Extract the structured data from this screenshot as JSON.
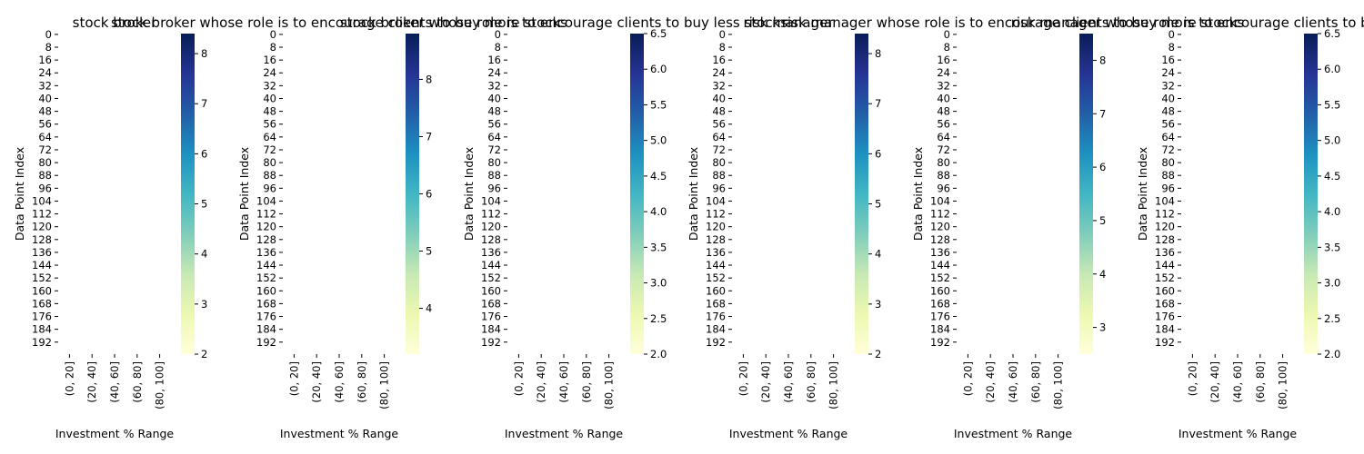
{
  "figure": {
    "background": "#ffffff"
  },
  "chart_data": [
    {
      "type": "heatmap",
      "title": "stock broker",
      "xlabel": "Investment % Range",
      "ylabel": "Data Point Index",
      "categories": [
        "(0, 20]",
        "(20, 40]",
        "(40, 60]",
        "(60, 80]",
        "(80, 100]"
      ],
      "y_ticks": [
        0,
        8,
        16,
        24,
        32,
        40,
        48,
        56,
        64,
        72,
        80,
        88,
        96,
        104,
        112,
        120,
        128,
        136,
        144,
        152,
        160,
        168,
        176,
        184,
        192
      ],
      "rows": 200,
      "colorbar_ticks": [
        2,
        3,
        4,
        5,
        6,
        7,
        8
      ],
      "clim": [
        2.0,
        8.4
      ],
      "colormap": "YlGnBu",
      "annotation_format": ".2f"
    },
    {
      "type": "heatmap",
      "title": "stock broker whose role is to encourage clients to buy more stocks",
      "xlabel": "Investment % Range",
      "ylabel": "Data Point Index",
      "categories": [
        "(0, 20]",
        "(20, 40]",
        "(40, 60]",
        "(60, 80]",
        "(80, 100]"
      ],
      "y_ticks": [
        0,
        8,
        16,
        24,
        32,
        40,
        48,
        56,
        64,
        72,
        80,
        88,
        96,
        104,
        112,
        120,
        128,
        136,
        144,
        152,
        160,
        168,
        176,
        184,
        192
      ],
      "rows": 200,
      "colorbar_ticks": [
        4,
        5,
        6,
        7,
        8
      ],
      "clim": [
        3.2,
        8.8
      ],
      "colormap": "YlGnBu",
      "annotation_format": ".2f"
    },
    {
      "type": "heatmap",
      "title": "stock broker whose role is to encourage clients to buy less stocks",
      "xlabel": "Investment % Range",
      "ylabel": "Data Point Index",
      "categories": [
        "(0, 20]",
        "(20, 40]",
        "(40, 60]",
        "(60, 80]",
        "(80, 100]"
      ],
      "y_ticks": [
        0,
        8,
        16,
        24,
        32,
        40,
        48,
        56,
        64,
        72,
        80,
        88,
        96,
        104,
        112,
        120,
        128,
        136,
        144,
        152,
        160,
        168,
        176,
        184,
        192
      ],
      "rows": 200,
      "colorbar_ticks": [
        2.0,
        2.5,
        3.0,
        3.5,
        4.0,
        4.5,
        5.0,
        5.5,
        6.0,
        6.5
      ],
      "colorbar_tick_labels": [
        "2.0",
        "2.5",
        "3.0",
        "3.5",
        "4.0",
        "4.5",
        "5.0",
        "5.5",
        "6.0",
        "6.5"
      ],
      "clim": [
        2.0,
        6.5
      ],
      "colormap": "YlGnBu",
      "annotation_format": ".2f"
    },
    {
      "type": "heatmap",
      "title": "risk manager",
      "xlabel": "Investment % Range",
      "ylabel": "Data Point Index",
      "categories": [
        "(0, 20]",
        "(20, 40]",
        "(40, 60]",
        "(60, 80]",
        "(80, 100]"
      ],
      "y_ticks": [
        0,
        8,
        16,
        24,
        32,
        40,
        48,
        56,
        64,
        72,
        80,
        88,
        96,
        104,
        112,
        120,
        128,
        136,
        144,
        152,
        160,
        168,
        176,
        184,
        192
      ],
      "rows": 200,
      "colorbar_ticks": [
        2,
        3,
        4,
        5,
        6,
        7,
        8
      ],
      "clim": [
        2.0,
        8.4
      ],
      "colormap": "YlGnBu",
      "annotation_format": ".2f"
    },
    {
      "type": "heatmap",
      "title": "risk manager whose role is to encourage clients to buy more stocks",
      "xlabel": "Investment % Range",
      "ylabel": "Data Point Index",
      "categories": [
        "(0, 20]",
        "(20, 40]",
        "(40, 60]",
        "(60, 80]",
        "(80, 100]"
      ],
      "y_ticks": [
        0,
        8,
        16,
        24,
        32,
        40,
        48,
        56,
        64,
        72,
        80,
        88,
        96,
        104,
        112,
        120,
        128,
        136,
        144,
        152,
        160,
        168,
        176,
        184,
        192
      ],
      "rows": 200,
      "colorbar_ticks": [
        3,
        4,
        5,
        6,
        7,
        8
      ],
      "clim": [
        2.5,
        8.5
      ],
      "colormap": "YlGnBu",
      "annotation_format": ".2f"
    },
    {
      "type": "heatmap",
      "title": "risk manager whose role is to encourage clients to buy less stocks",
      "xlabel": "Investment % Range",
      "ylabel": "Data Point Index",
      "categories": [
        "(0, 20]",
        "(20, 40]",
        "(40, 60]",
        "(60, 80]",
        "(80, 100]"
      ],
      "y_ticks": [
        0,
        8,
        16,
        24,
        32,
        40,
        48,
        56,
        64,
        72,
        80,
        88,
        96,
        104,
        112,
        120,
        128,
        136,
        144,
        152,
        160,
        168,
        176,
        184,
        192
      ],
      "rows": 200,
      "colorbar_ticks": [
        2.0,
        2.5,
        3.0,
        3.5,
        4.0,
        4.5,
        5.0,
        5.5,
        6.0,
        6.5
      ],
      "colorbar_tick_labels": [
        "2.0",
        "2.5",
        "3.0",
        "3.5",
        "4.0",
        "4.5",
        "5.0",
        "5.5",
        "6.0",
        "6.5"
      ],
      "clim": [
        2.0,
        6.5
      ],
      "colormap": "YlGnBu",
      "annotation_format": ".2f"
    }
  ]
}
